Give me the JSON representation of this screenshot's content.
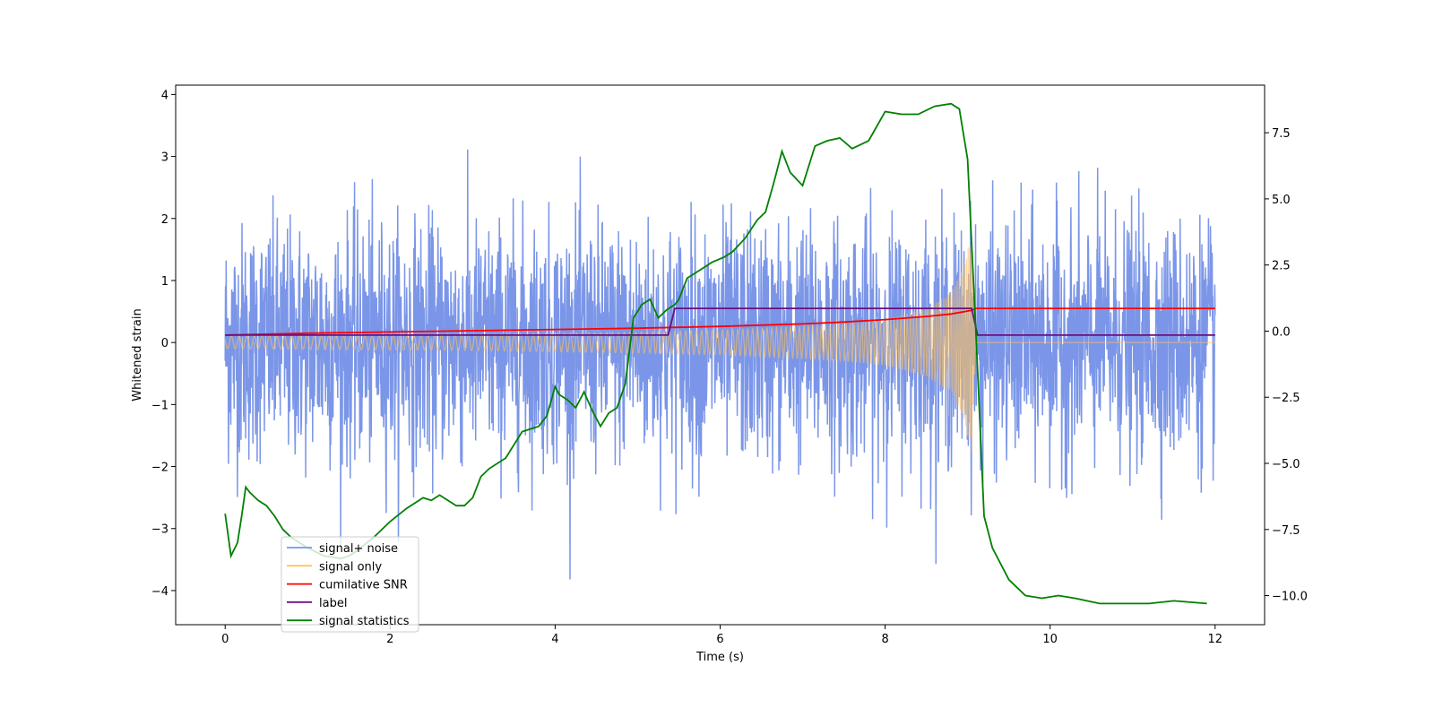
{
  "chart_data": {
    "type": "line",
    "title": "",
    "xlabel": "Time (s)",
    "ylabel": "Whitened strain",
    "y2label": "",
    "xlim": [
      -0.6,
      12.6
    ],
    "ylim": [
      -4.55,
      4.15
    ],
    "y2lim": [
      -11.1,
      9.3
    ],
    "xticks": [
      0,
      2,
      4,
      6,
      8,
      10,
      12
    ],
    "yticks": [
      -4,
      -3,
      -2,
      -1,
      0,
      1,
      2,
      3,
      4
    ],
    "y2ticks": [
      -10.0,
      -7.5,
      -5.0,
      -2.5,
      0.0,
      2.5,
      5.0,
      7.5
    ],
    "grid": false,
    "legend_position": "lower-left",
    "legend": [
      {
        "label": "signal+ noise",
        "color": "#7b96e8"
      },
      {
        "label": "signal only",
        "color": "#ffc15e"
      },
      {
        "label": "cumilative SNR",
        "color": "#ff0000"
      },
      {
        "label": "label",
        "color": "#6a0f7e"
      },
      {
        "label": "signal statistics",
        "color": "#008000"
      }
    ],
    "series": [
      {
        "name": "signal+ noise",
        "axis": "left",
        "color": "#7b96e8",
        "description_envelope": {
          "x": [
            0,
            12
          ],
          "y_typical_range": [
            -2.3,
            2.3
          ],
          "y_extremes": [
            -4.15,
            3.75
          ]
        }
      },
      {
        "name": "signal only",
        "axis": "left",
        "color": "#ffc15e",
        "envelope_x": [
          0,
          1,
          2,
          3,
          4,
          5,
          6,
          7,
          7.5,
          8,
          8.5,
          8.8,
          8.95,
          9.05,
          9.1,
          12
        ],
        "envelope_amp": [
          0.1,
          0.11,
          0.12,
          0.13,
          0.15,
          0.17,
          0.2,
          0.26,
          0.3,
          0.37,
          0.55,
          0.8,
          1.2,
          1.85,
          0.0,
          0.0
        ]
      },
      {
        "name": "cumilative SNR",
        "axis": "left",
        "color": "#ff0000",
        "x": [
          0,
          1,
          2,
          3,
          4,
          5,
          6,
          7,
          7.5,
          8,
          8.5,
          8.8,
          9.05,
          9.1,
          12
        ],
        "y": [
          0.12,
          0.15,
          0.17,
          0.19,
          0.21,
          0.23,
          0.26,
          0.3,
          0.33,
          0.37,
          0.42,
          0.46,
          0.52,
          0.55,
          0.55
        ]
      },
      {
        "name": "label",
        "axis": "left",
        "color": "#6a0f7e",
        "x": [
          0,
          5.37,
          5.45,
          9.05,
          9.12,
          12
        ],
        "y": [
          0.12,
          0.12,
          0.55,
          0.55,
          0.12,
          0.12
        ]
      },
      {
        "name": "signal statistics",
        "axis": "right",
        "color": "#008000",
        "x": [
          0,
          0.07,
          0.15,
          0.2,
          0.25,
          0.3,
          0.4,
          0.5,
          0.6,
          0.7,
          0.8,
          1.0,
          1.2,
          1.4,
          1.5,
          1.6,
          1.8,
          2.0,
          2.2,
          2.4,
          2.5,
          2.6,
          2.8,
          2.9,
          3.0,
          3.1,
          3.2,
          3.4,
          3.6,
          3.7,
          3.8,
          3.9,
          4.0,
          4.05,
          4.15,
          4.25,
          4.35,
          4.45,
          4.55,
          4.65,
          4.75,
          4.85,
          4.95,
          5.05,
          5.15,
          5.25,
          5.35,
          5.45,
          5.5,
          5.6,
          5.75,
          5.9,
          6.05,
          6.15,
          6.3,
          6.45,
          6.55,
          6.65,
          6.75,
          6.85,
          7.0,
          7.15,
          7.3,
          7.45,
          7.6,
          7.8,
          8.0,
          8.2,
          8.4,
          8.6,
          8.8,
          8.9,
          9.0,
          9.1,
          9.2,
          9.3,
          9.5,
          9.7,
          9.9,
          10.1,
          10.3,
          10.6,
          10.9,
          11.2,
          11.5,
          11.9
        ],
        "y": [
          -6.9,
          -8.5,
          -8.0,
          -7.0,
          -5.9,
          -6.1,
          -6.4,
          -6.6,
          -7.0,
          -7.5,
          -7.8,
          -8.2,
          -8.5,
          -8.6,
          -8.5,
          -8.3,
          -7.8,
          -7.2,
          -6.7,
          -6.3,
          -6.4,
          -6.2,
          -6.6,
          -6.6,
          -6.3,
          -5.5,
          -5.2,
          -4.8,
          -3.8,
          -3.7,
          -3.6,
          -3.2,
          -2.1,
          -2.4,
          -2.6,
          -2.9,
          -2.3,
          -3.0,
          -3.6,
          -3.1,
          -2.9,
          -2.0,
          0.5,
          1.0,
          1.2,
          0.5,
          0.8,
          1.0,
          1.2,
          2.0,
          2.3,
          2.6,
          2.8,
          3.0,
          3.5,
          4.2,
          4.5,
          5.6,
          6.8,
          6.0,
          5.5,
          7.0,
          7.2,
          7.3,
          6.9,
          7.2,
          8.3,
          8.2,
          8.2,
          8.5,
          8.6,
          8.4,
          6.5,
          0.0,
          -7.0,
          -8.2,
          -9.4,
          -10.0,
          -10.1,
          -10.0,
          -10.1,
          -10.3,
          -10.3,
          -10.3,
          -10.2,
          -10.3
        ]
      }
    ]
  }
}
